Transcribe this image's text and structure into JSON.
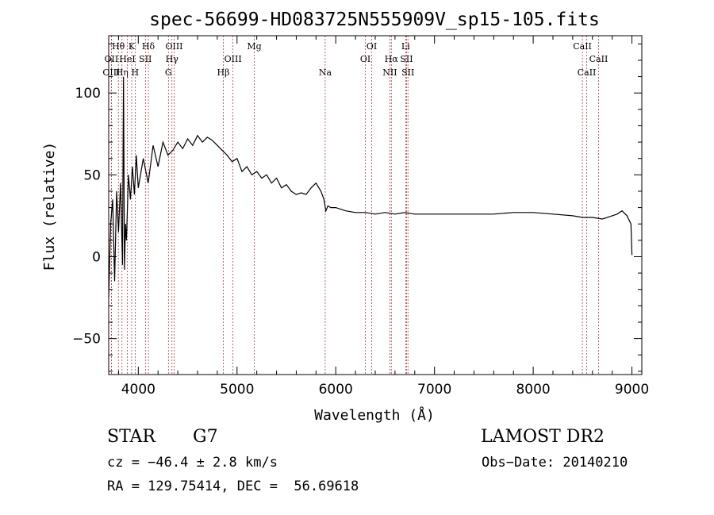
{
  "chart_data": {
    "type": "line",
    "title": "spec-56699-HD083725N555909V_sp15-105.fits",
    "xlabel": "Wavelength (Å)",
    "ylabel": "Flux (relative)",
    "xlim": [
      3700,
      9100
    ],
    "ylim": [
      -72,
      135
    ],
    "xticks": [
      4000,
      5000,
      6000,
      7000,
      8000,
      9000
    ],
    "xtick_labels": [
      "4000",
      "5000",
      "6000",
      "7000",
      "8000",
      "9000"
    ],
    "yticks": [
      -50,
      0,
      50,
      100
    ],
    "ytick_labels": [
      "−50",
      "0",
      "50",
      "100"
    ],
    "grid": false,
    "line_color": "#000000",
    "marker_color": "#b22222",
    "series": [
      {
        "x": [
          3700,
          3720,
          3740,
          3760,
          3780,
          3800,
          3820,
          3840,
          3850,
          3860,
          3870,
          3880,
          3900,
          3920,
          3940,
          3960,
          3980,
          4000,
          4050,
          4100,
          4150,
          4200,
          4250,
          4300,
          4350,
          4400,
          4450,
          4500,
          4550,
          4600,
          4650,
          4700,
          4750,
          4800,
          4850,
          4900,
          4950,
          5000,
          5050,
          5100,
          5150,
          5200,
          5250,
          5300,
          5350,
          5400,
          5450,
          5500,
          5550,
          5600,
          5650,
          5700,
          5750,
          5800,
          5850,
          5880,
          5900,
          5920,
          5950,
          6000,
          6100,
          6200,
          6300,
          6400,
          6500,
          6600,
          6700,
          6800,
          6900,
          7000,
          7200,
          7400,
          7600,
          7800,
          8000,
          8200,
          8400,
          8500,
          8600,
          8700,
          8800,
          8850,
          8900,
          8950,
          8990,
          9000
        ],
        "y": [
          -25,
          20,
          35,
          -15,
          40,
          15,
          45,
          -5,
          110,
          -8,
          20,
          10,
          50,
          35,
          55,
          38,
          62,
          42,
          60,
          45,
          68,
          55,
          70,
          62,
          65,
          70,
          66,
          72,
          68,
          74,
          70,
          73,
          71,
          68,
          65,
          62,
          58,
          60,
          52,
          55,
          50,
          52,
          48,
          50,
          45,
          48,
          42,
          44,
          40,
          38,
          39,
          38,
          42,
          45,
          40,
          35,
          28,
          31,
          30,
          30,
          28,
          27,
          27,
          26,
          27,
          26,
          27,
          26,
          26,
          26,
          26,
          26,
          26,
          27,
          27,
          26,
          25,
          24,
          24,
          23,
          25,
          26,
          28,
          25,
          20,
          1
        ]
      }
    ],
    "lines": [
      {
        "name": "Hθ",
        "x": 3798,
        "row": 0
      },
      {
        "name": "K",
        "x": 3933,
        "row": 0
      },
      {
        "name": "Hδ",
        "x": 4102,
        "row": 0
      },
      {
        "name": "OIII",
        "x": 4363,
        "row": 0
      },
      {
        "name": "Mg",
        "x": 5175,
        "row": 0
      },
      {
        "name": "OI",
        "x": 6364,
        "row": 0
      },
      {
        "name": "Li",
        "x": 6708,
        "row": 0
      },
      {
        "name": "CaII",
        "x": 8498,
        "row": 0
      },
      {
        "name": "OII",
        "x": 3727,
        "row": 1
      },
      {
        "name": "HeI",
        "x": 3889,
        "row": 1
      },
      {
        "name": "SII",
        "x": 4072,
        "row": 1
      },
      {
        "name": "Hγ",
        "x": 4341,
        "row": 1
      },
      {
        "name": "OIII",
        "x": 4959,
        "row": 1
      },
      {
        "name": "OI",
        "x": 6300,
        "row": 1
      },
      {
        "name": "Hα",
        "x": 6563,
        "row": 1
      },
      {
        "name": "SII",
        "x": 6717,
        "row": 1
      },
      {
        "name": "CaII",
        "x": 8662,
        "row": 1
      },
      {
        "name": "OIII",
        "x": 3727,
        "row": 2
      },
      {
        "name": "Hη",
        "x": 3835,
        "row": 2
      },
      {
        "name": "H",
        "x": 3968,
        "row": 2
      },
      {
        "name": "G",
        "x": 4305,
        "row": 2
      },
      {
        "name": "Hβ",
        "x": 4861,
        "row": 2
      },
      {
        "name": "Na",
        "x": 5893,
        "row": 2
      },
      {
        "name": "NII",
        "x": 6548,
        "row": 2
      },
      {
        "name": "SII",
        "x": 6731,
        "row": 2
      },
      {
        "name": "CaII",
        "x": 8542,
        "row": 2
      }
    ]
  },
  "info": {
    "object_class": "STAR",
    "subclass": "G7",
    "survey": "LAMOST DR2",
    "cz": "cz = −46.4 ± 2.8 km/s",
    "obs_date": "Obs−Date: 20140210",
    "radec": "RA = 129.75414, DEC =  56.69618"
  }
}
